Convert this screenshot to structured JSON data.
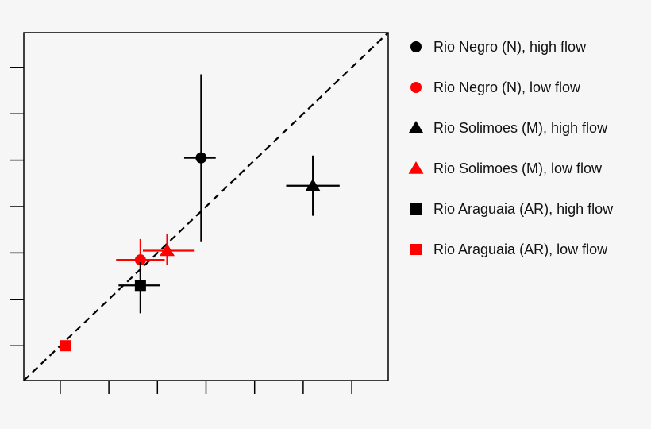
{
  "chart_data": {
    "type": "scatter",
    "title": "",
    "xlabel": "",
    "ylabel": "",
    "xlim": [
      0,
      7.5
    ],
    "ylim": [
      0,
      7.5
    ],
    "x_ticks": [
      0.75,
      1.75,
      2.75,
      3.75,
      4.75,
      5.75,
      6.75
    ],
    "y_ticks": [
      0.75,
      1.75,
      2.75,
      3.75,
      4.75,
      5.75,
      6.75
    ],
    "tick_labels_shown": false,
    "reference_line": {
      "style": "dashed",
      "from": [
        0,
        0
      ],
      "to": [
        7.5,
        7.5
      ],
      "meaning": "1:1 line"
    },
    "grid": false,
    "legend_position": "right",
    "series": [
      {
        "name": "Rio Negro (N), high flow",
        "marker": "circle",
        "color": "#000000",
        "points": [
          {
            "x": 3.65,
            "y": 4.8,
            "x_err": [
              3.3,
              3.95
            ],
            "y_err": [
              3.0,
              6.6
            ]
          }
        ]
      },
      {
        "name": "Rio Negro (N), low flow",
        "marker": "circle",
        "color": "#ff0000",
        "points": [
          {
            "x": 2.4,
            "y": 2.6,
            "x_err": [
              1.9,
              2.9
            ],
            "y_err": [
              2.2,
              3.05
            ]
          }
        ]
      },
      {
        "name": "Rio Solimoes (M), high flow",
        "marker": "triangle",
        "color": "#000000",
        "points": [
          {
            "x": 5.95,
            "y": 4.2,
            "x_err": [
              5.4,
              6.5
            ],
            "y_err": [
              3.55,
              4.85
            ]
          }
        ]
      },
      {
        "name": "Rio Solimoes (M), low flow",
        "marker": "triangle",
        "color": "#ff0000",
        "points": [
          {
            "x": 2.95,
            "y": 2.8,
            "x_err": [
              2.45,
              3.5
            ],
            "y_err": [
              2.5,
              3.15
            ]
          }
        ]
      },
      {
        "name": "Rio Araguaia (AR), high flow",
        "marker": "square",
        "color": "#000000",
        "points": [
          {
            "x": 2.4,
            "y": 2.05,
            "x_err": [
              1.95,
              2.8
            ],
            "y_err": [
              1.45,
              2.55
            ]
          }
        ]
      },
      {
        "name": "Rio Araguaia (AR), low flow",
        "marker": "square",
        "color": "#ff0000",
        "points": [
          {
            "x": 0.85,
            "y": 0.75,
            "x_err": null,
            "y_err": null
          }
        ]
      }
    ]
  }
}
